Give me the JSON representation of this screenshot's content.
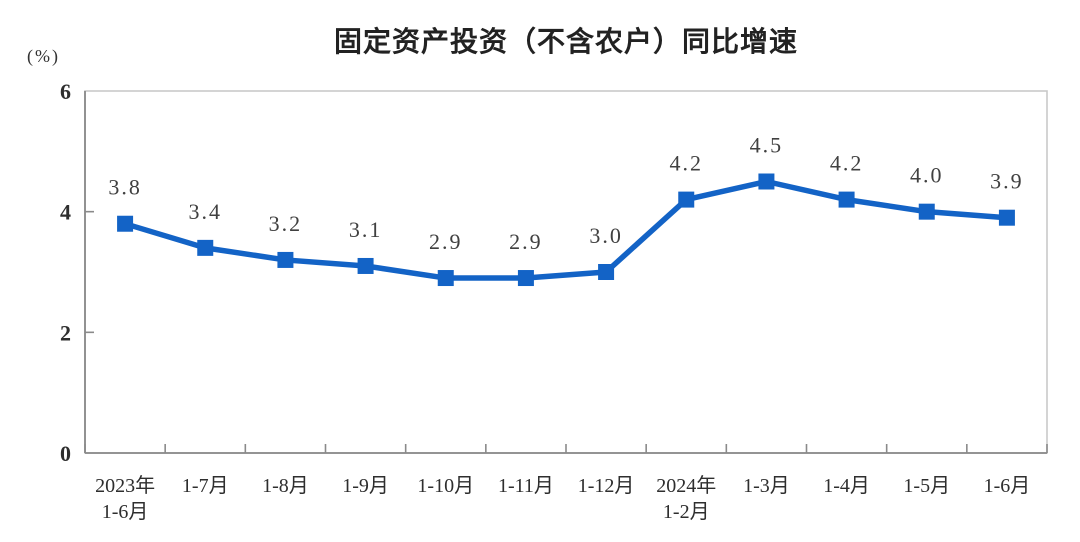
{
  "chart_data": {
    "type": "line",
    "title": "固定资产投资（不含农户）同比增速",
    "unit_label": "(%)",
    "categories": [
      [
        "2023年",
        "1-6月"
      ],
      [
        "1-7月"
      ],
      [
        "1-8月"
      ],
      [
        "1-9月"
      ],
      [
        "1-10月"
      ],
      [
        "1-11月"
      ],
      [
        "1-12月"
      ],
      [
        "2024年",
        "1-2月"
      ],
      [
        "1-3月"
      ],
      [
        "1-4月"
      ],
      [
        "1-5月"
      ],
      [
        "1-6月"
      ]
    ],
    "series": [
      {
        "name": "固定资产投资（不含农户）同比增速",
        "values": [
          3.8,
          3.4,
          3.2,
          3.1,
          2.9,
          2.9,
          3.0,
          4.2,
          4.5,
          4.2,
          4.0,
          3.9
        ],
        "data_labels": [
          "3.8",
          "3.4",
          "3.2",
          "3.1",
          "2.9",
          "2.9",
          "3.0",
          "4.2",
          "4.5",
          "4.2",
          "4.0",
          "3.9"
        ]
      }
    ],
    "xlabel": "",
    "ylabel": "(%)",
    "ylim": [
      0,
      6
    ],
    "yticks": [
      0,
      2,
      4,
      6
    ],
    "grid": false,
    "legend_position": "none",
    "colors": {
      "line": "#1363c6",
      "marker": "#1363c6",
      "data_label": "#404040",
      "axis": "#8a8a8a",
      "plot_border": "#c9c9c9",
      "tick_label": "#2e2e2e",
      "title": "#222222",
      "background": "#ffffff"
    }
  }
}
